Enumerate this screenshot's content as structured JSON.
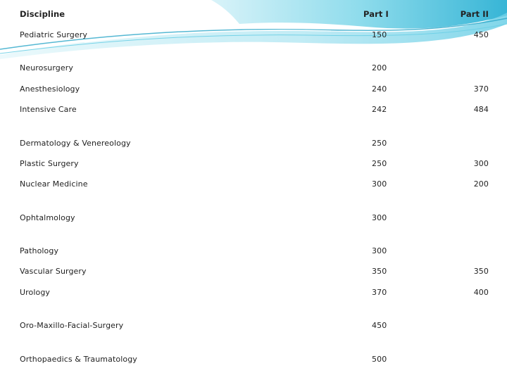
{
  "table": {
    "headers": {
      "discipline": "Discipline",
      "part1": "Part I",
      "part2": "Part II"
    },
    "rows": [
      {
        "discipline": "Pediatric Surgery",
        "part1": "150",
        "part2": "450"
      },
      {
        "discipline": "Neurosurgery",
        "part1": "200",
        "part2": ""
      },
      {
        "discipline": "Anesthesiology",
        "part1": "240",
        "part2": "370"
      },
      {
        "discipline": "Intensive Care",
        "part1": "242",
        "part2": "484"
      },
      {
        "discipline": "Dermatology & Venereology",
        "part1": "250",
        "part2": ""
      },
      {
        "discipline": "Plastic Surgery",
        "part1": "250",
        "part2": "300"
      },
      {
        "discipline": "Nuclear Medicine",
        "part1": "300",
        "part2": "200"
      },
      {
        "discipline": "Ophtalmology",
        "part1": "300",
        "part2": ""
      },
      {
        "discipline": "Pathology",
        "part1": "300",
        "part2": ""
      },
      {
        "discipline": "Vascular Surgery",
        "part1": "350",
        "part2": "350"
      },
      {
        "discipline": "Urology",
        "part1": "370",
        "part2": "400"
      },
      {
        "discipline": "Oro-Maxillo-Facial-Surgery",
        "part1": "450",
        "part2": ""
      },
      {
        "discipline": "Orthopaedics & Traumatology",
        "part1": "500",
        "part2": ""
      }
    ]
  },
  "theme": {
    "accent": "#6ccfe6",
    "accent_light": "#bfeaf4",
    "accent_dark": "#2aa6c8"
  }
}
